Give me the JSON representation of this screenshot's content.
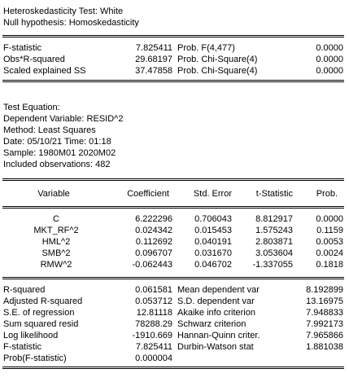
{
  "header": {
    "title": "Heteroskedasticity Test: White",
    "null_hypothesis": "Null hypothesis: Homoskedasticity"
  },
  "test_stats": [
    {
      "label": "F-statistic",
      "value": "7.825411",
      "prob_label": "Prob. F(4,477)",
      "prob": "0.0000"
    },
    {
      "label": "Obs*R-squared",
      "value": "29.68197",
      "prob_label": "Prob. Chi-Square(4)",
      "prob": "0.0000"
    },
    {
      "label": "Scaled explained SS",
      "value": "37.47858",
      "prob_label": "Prob. Chi-Square(4)",
      "prob": "0.0000"
    }
  ],
  "equation_info": {
    "title": "Test Equation:",
    "dependent": "Dependent Variable: RESID^2",
    "method": "Method: Least Squares",
    "date": "Date: 05/10/21   Time: 01:18",
    "sample": "Sample: 1980M01 2020M02",
    "observations": "Included observations: 482"
  },
  "coef_table": {
    "headers": [
      "Variable",
      "Coefficient",
      "Std. Error",
      "t-Statistic",
      "Prob."
    ],
    "rows": [
      [
        "C",
        "6.222296",
        "0.706043",
        "8.812917",
        "0.0000"
      ],
      [
        "MKT_RF^2",
        "0.024342",
        "0.015453",
        "1.575243",
        "0.1159"
      ],
      [
        "HML^2",
        "0.112692",
        "0.040191",
        "2.803871",
        "0.0053"
      ],
      [
        "SMB^2",
        "0.096707",
        "0.031670",
        "3.053604",
        "0.0024"
      ],
      [
        "RMW^2",
        "-0.062443",
        "0.046702",
        "-1.337055",
        "0.1818"
      ]
    ]
  },
  "summary_stats": [
    {
      "left_label": "R-squared",
      "left_value": "0.061581",
      "right_label": "Mean dependent var",
      "right_value": "8.192899"
    },
    {
      "left_label": "Adjusted R-squared",
      "left_value": "0.053712",
      "right_label": "S.D. dependent var",
      "right_value": "13.16975"
    },
    {
      "left_label": "S.E. of regression",
      "left_value": "12.81118",
      "right_label": "Akaike info criterion",
      "right_value": "7.948833"
    },
    {
      "left_label": "Sum squared resid",
      "left_value": "78288.29",
      "right_label": "Schwarz criterion",
      "right_value": "7.992173"
    },
    {
      "left_label": "Log likelihood",
      "left_value": "-1910.669",
      "right_label": "Hannan-Quinn criter.",
      "right_value": "7.965866"
    },
    {
      "left_label": "F-statistic",
      "left_value": "7.825411",
      "right_label": "Durbin-Watson stat",
      "right_value": "1.881038"
    },
    {
      "left_label": "Prob(F-statistic)",
      "left_value": "0.000004",
      "right_label": "",
      "right_value": ""
    }
  ]
}
